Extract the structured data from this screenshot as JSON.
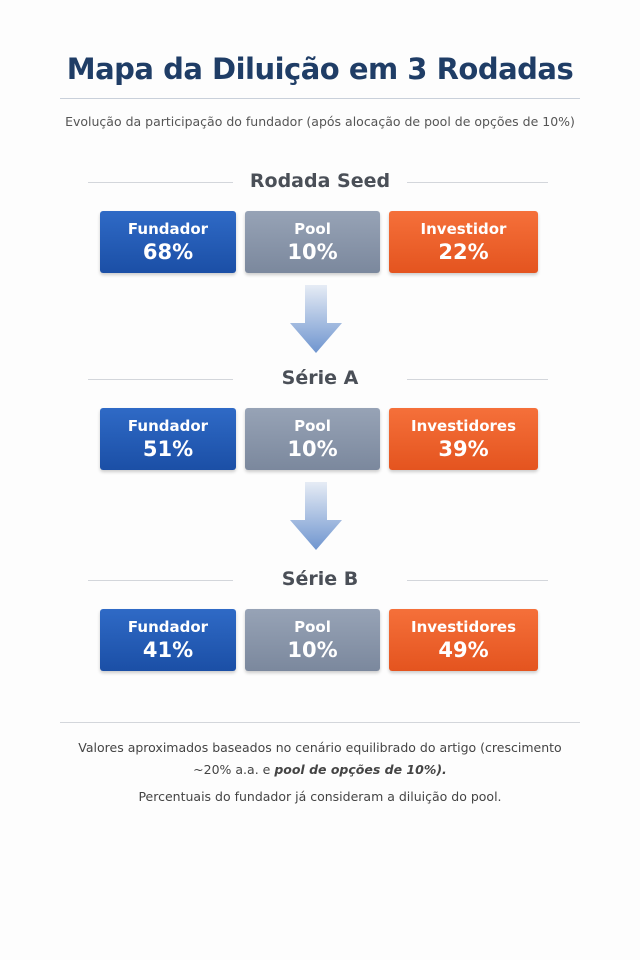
{
  "header": {
    "title": "Mapa da Diluição em 3 Rodadas",
    "subtitle": "Evolução da participação do fundador (após alocação de pool de opções de 10%)"
  },
  "rounds": [
    {
      "title": "Rodada Seed",
      "boxes": [
        {
          "label": "Fundador",
          "value": "68%"
        },
        {
          "label": "Pool",
          "value": "10%"
        },
        {
          "label": "Investidor",
          "value": "22%"
        }
      ]
    },
    {
      "title": "Série A",
      "boxes": [
        {
          "label": "Fundador",
          "value": "51%"
        },
        {
          "label": "Pool",
          "value": "10%"
        },
        {
          "label": "Investidores",
          "value": "39%"
        }
      ]
    },
    {
      "title": "Série B",
      "boxes": [
        {
          "label": "Fundador",
          "value": "41%"
        },
        {
          "label": "Pool",
          "value": "10%"
        },
        {
          "label": "Investidores",
          "value": "49%"
        }
      ]
    }
  ],
  "footer": {
    "note": [
      "Valores aproximados baseados no cenário equilibrado do artigo (crescimento ~20% a.a. e ",
      "pool de opções de 10%)."
    ],
    "remark": "Percentuais do fundador já consideram a diluição do pool."
  }
}
